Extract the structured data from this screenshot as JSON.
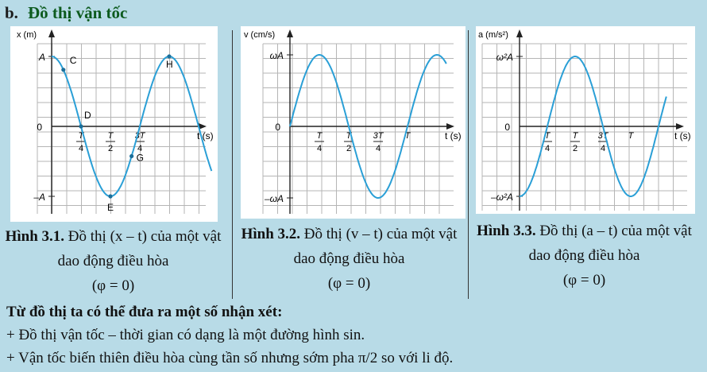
{
  "heading": {
    "label": "b.",
    "title": "Đồ thị vận tốc"
  },
  "figures": [
    {
      "graph": {
        "y_label": "x (m)",
        "t_label": "t (s)",
        "y_pos": "A",
        "y_neg": "–A",
        "zero": "0",
        "ticks": [
          {
            "num": "T",
            "den": "4"
          },
          {
            "num": "T",
            "den": "2"
          },
          {
            "num": "3T",
            "den": "4"
          }
        ],
        "points": [
          "C",
          "D",
          "E",
          "G",
          "H"
        ]
      },
      "caption": {
        "bold": "Hình 3.1.",
        "text": " Đồ thị (x – t) của một vật dao động điều hòa",
        "line3": "(φ = 0)"
      }
    },
    {
      "graph": {
        "y_label": "v (cm/s)",
        "t_label": "t (s)",
        "y_pos": "ωA",
        "y_neg": "–ωA",
        "zero": "0",
        "ticks": [
          {
            "num": "T",
            "den": "4"
          },
          {
            "num": "T",
            "den": "2"
          },
          {
            "num": "3T",
            "den": "4"
          }
        ],
        "tick_T": "T"
      },
      "caption": {
        "bold": "Hình 3.2.",
        "text": " Đồ thị (v – t) của một vật dao động điều hòa",
        "line3": "(φ = 0)"
      }
    },
    {
      "graph": {
        "y_label": "a (m/s²)",
        "t_label": "t (s)",
        "y_pos": "ω²A",
        "y_neg": "–ω²A",
        "zero": "0",
        "ticks": [
          {
            "num": "T",
            "den": "4"
          },
          {
            "num": "T",
            "den": "2"
          },
          {
            "num": "3T",
            "den": "4"
          }
        ],
        "tick_T": "T"
      },
      "caption": {
        "bold": "Hình 3.3.",
        "text": " Đồ thị (a – t) của một vật dao động điều hòa",
        "line3": "(φ = 0)"
      }
    }
  ],
  "notes": {
    "title": "Từ đồ thị ta có thể đưa ra một số nhận xét:",
    "items": [
      "+ Đồ thị vận tốc – thời gian có dạng là một đường hình sin.",
      "+ Vận tốc biến thiên điều hòa cùng tần số nhưng sớm pha π/2 so với li độ."
    ]
  },
  "colors": {
    "curve": "#2a9fd6",
    "grid": "#b5b5b5",
    "heading": "#0d5b1e",
    "background": "#b8dbe7"
  }
}
